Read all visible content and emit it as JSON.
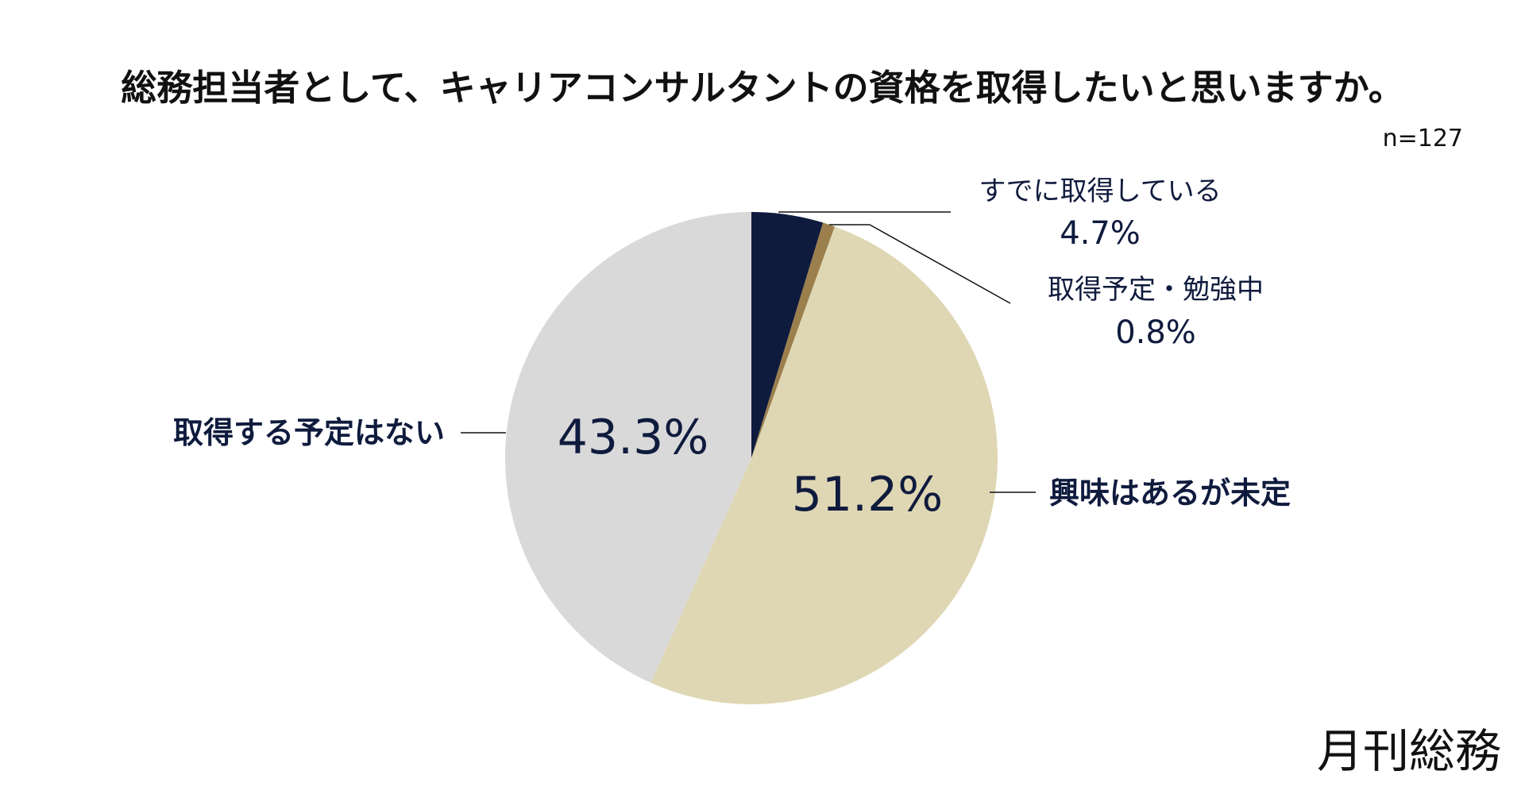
{
  "chart_data": {
    "type": "pie",
    "title": "総務担当者として、キャリアコンサルタントの資格を取得したいと思いますか。",
    "sample_size": "n=127",
    "start": "top",
    "direction": "clockwise",
    "slices": [
      {
        "label": "すでに取得している",
        "value": 4.7,
        "display": "4.7%",
        "color": "#0f1b3d"
      },
      {
        "label": "取得予定・勉強中",
        "value": 0.8,
        "display": "0.8%",
        "color": "#9b7f4c"
      },
      {
        "label": "興味はあるが未定",
        "value": 51.2,
        "display": "51.2%",
        "color": "#dfd7b4"
      },
      {
        "label": "取得する予定はない",
        "value": 43.3,
        "display": "43.3%",
        "color": "#d9d9d9"
      }
    ]
  },
  "brand": {
    "logo_text": "月刊総務"
  }
}
